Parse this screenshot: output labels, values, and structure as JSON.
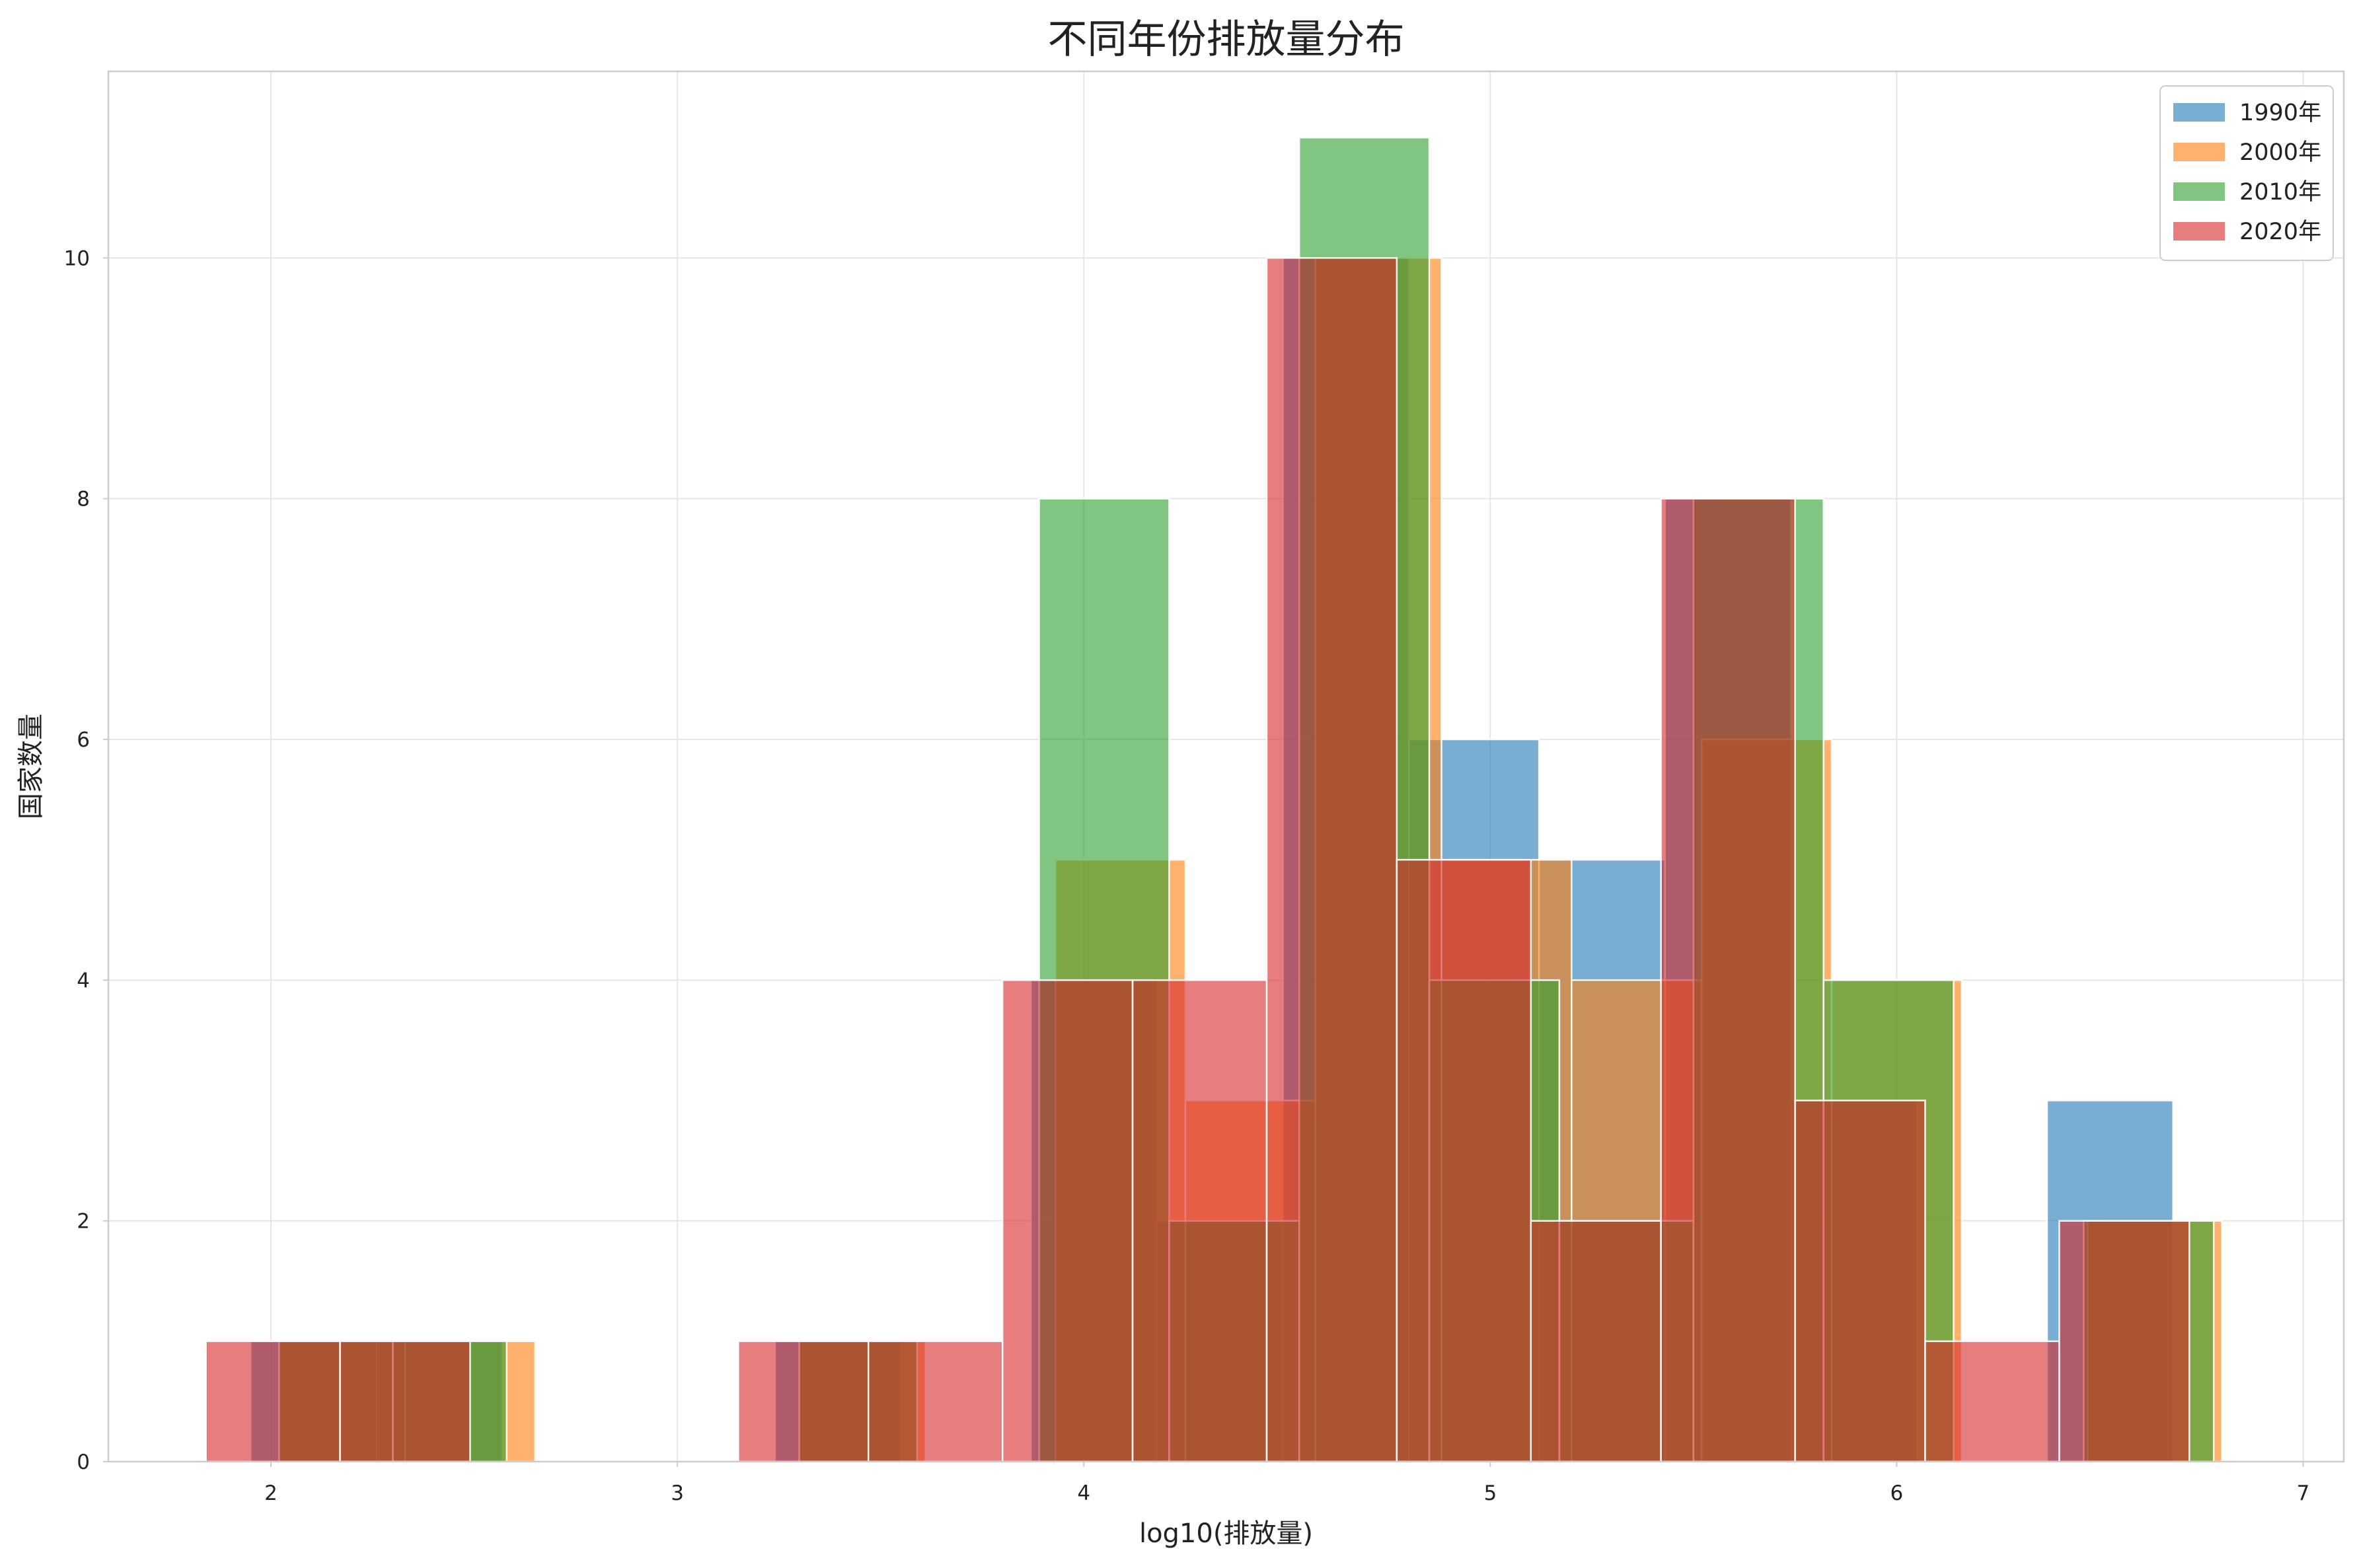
{
  "chart_data": {
    "type": "histogram",
    "title": "不同年份排放量分布",
    "xlabel": "log10(排放量)",
    "ylabel": "国家数量",
    "xlim": [
      1.6,
      7.1
    ],
    "ylim": [
      0,
      11.55
    ],
    "x_ticks": [
      2,
      3,
      4,
      5,
      6,
      7
    ],
    "x_tick_labels": [
      "2",
      "3",
      "4",
      "5",
      "6",
      "7"
    ],
    "y_ticks": [
      0,
      2,
      4,
      6,
      8,
      10
    ],
    "y_tick_labels": [
      "0",
      "2",
      "4",
      "6",
      "8",
      "10"
    ],
    "grid": true,
    "legend_position": "top-right",
    "series": [
      {
        "name": "1990年",
        "color": "#1f77b4",
        "opacity": 0.6,
        "bins": [
          {
            "x0": 1.95,
            "x1": 2.26,
            "count": 1
          },
          {
            "x0": 2.26,
            "x1": 2.57,
            "count": 1
          },
          {
            "x0": 3.24,
            "x1": 3.55,
            "count": 1
          },
          {
            "x0": 3.55,
            "x1": 3.87,
            "count": 0
          },
          {
            "x0": 3.87,
            "x1": 4.18,
            "count": 4
          },
          {
            "x0": 4.18,
            "x1": 4.49,
            "count": 2
          },
          {
            "x0": 4.49,
            "x1": 4.8,
            "count": 10
          },
          {
            "x0": 4.8,
            "x1": 5.12,
            "count": 6
          },
          {
            "x0": 5.12,
            "x1": 5.43,
            "count": 5
          },
          {
            "x0": 5.43,
            "x1": 5.74,
            "count": 8
          },
          {
            "x0": 5.74,
            "x1": 6.05,
            "count": 3
          },
          {
            "x0": 6.05,
            "x1": 6.37,
            "count": 0
          },
          {
            "x0": 6.37,
            "x1": 6.68,
            "count": 3
          }
        ]
      },
      {
        "name": "2000年",
        "color": "#ff7f0e",
        "opacity": 0.6,
        "bins": [
          {
            "x0": 2.02,
            "x1": 2.33,
            "count": 1
          },
          {
            "x0": 2.33,
            "x1": 2.65,
            "count": 1
          },
          {
            "x0": 3.3,
            "x1": 3.61,
            "count": 1
          },
          {
            "x0": 3.61,
            "x1": 3.93,
            "count": 0
          },
          {
            "x0": 3.93,
            "x1": 4.25,
            "count": 5
          },
          {
            "x0": 4.25,
            "x1": 4.57,
            "count": 3
          },
          {
            "x0": 4.57,
            "x1": 4.88,
            "count": 10
          },
          {
            "x0": 4.88,
            "x1": 5.2,
            "count": 5
          },
          {
            "x0": 5.2,
            "x1": 5.52,
            "count": 4
          },
          {
            "x0": 5.52,
            "x1": 5.84,
            "count": 6
          },
          {
            "x0": 5.84,
            "x1": 6.16,
            "count": 4
          },
          {
            "x0": 6.16,
            "x1": 6.47,
            "count": 0
          },
          {
            "x0": 6.47,
            "x1": 6.8,
            "count": 2
          }
        ]
      },
      {
        "name": "2010年",
        "color": "#2ca02c",
        "opacity": 0.6,
        "bins": [
          {
            "x0": 2.02,
            "x1": 2.3,
            "count": 1
          },
          {
            "x0": 2.3,
            "x1": 2.58,
            "count": 1
          },
          {
            "x0": 3.3,
            "x1": 3.59,
            "count": 1
          },
          {
            "x0": 3.59,
            "x1": 3.89,
            "count": 0
          },
          {
            "x0": 3.89,
            "x1": 4.21,
            "count": 8
          },
          {
            "x0": 4.21,
            "x1": 4.53,
            "count": 2
          },
          {
            "x0": 4.53,
            "x1": 4.85,
            "count": 11
          },
          {
            "x0": 4.85,
            "x1": 5.17,
            "count": 4
          },
          {
            "x0": 5.17,
            "x1": 5.5,
            "count": 2
          },
          {
            "x0": 5.5,
            "x1": 5.82,
            "count": 8
          },
          {
            "x0": 5.82,
            "x1": 6.14,
            "count": 4
          },
          {
            "x0": 6.14,
            "x1": 6.46,
            "count": 0
          },
          {
            "x0": 6.46,
            "x1": 6.78,
            "count": 2
          }
        ]
      },
      {
        "name": "2020年",
        "color": "#d62728",
        "opacity": 0.6,
        "bins": [
          {
            "x0": 1.84,
            "x1": 2.17,
            "count": 1
          },
          {
            "x0": 2.17,
            "x1": 2.49,
            "count": 1
          },
          {
            "x0": 3.15,
            "x1": 3.47,
            "count": 1
          },
          {
            "x0": 3.47,
            "x1": 3.8,
            "count": 1
          },
          {
            "x0": 3.8,
            "x1": 4.12,
            "count": 4
          },
          {
            "x0": 4.12,
            "x1": 4.45,
            "count": 4
          },
          {
            "x0": 4.45,
            "x1": 4.77,
            "count": 10
          },
          {
            "x0": 4.77,
            "x1": 5.1,
            "count": 5
          },
          {
            "x0": 5.1,
            "x1": 5.42,
            "count": 2
          },
          {
            "x0": 5.42,
            "x1": 5.75,
            "count": 8
          },
          {
            "x0": 5.75,
            "x1": 6.07,
            "count": 3
          },
          {
            "x0": 6.07,
            "x1": 6.4,
            "count": 1
          },
          {
            "x0": 6.4,
            "x1": 6.72,
            "count": 2
          }
        ]
      }
    ]
  }
}
